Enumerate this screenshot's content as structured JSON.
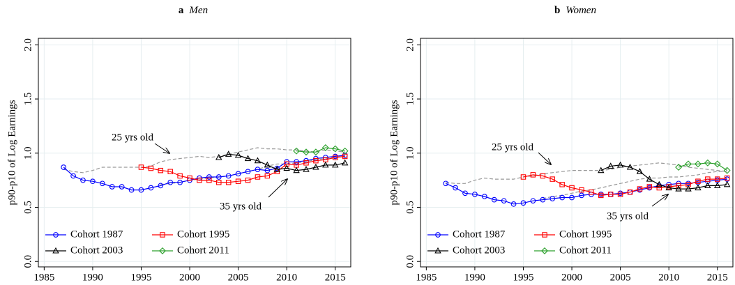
{
  "chart_data": [
    {
      "type": "line",
      "panel_label": "a",
      "title": "Men",
      "ylabel": "p90-p10 of Log Earnings",
      "x": [
        1987,
        1988,
        1989,
        1990,
        1991,
        1992,
        1993,
        1994,
        1995,
        1996,
        1997,
        1998,
        1999,
        2000,
        2001,
        2002,
        2003,
        2004,
        2005,
        2006,
        2007,
        2008,
        2009,
        2010,
        2011,
        2012,
        2013,
        2014,
        2015,
        2016
      ],
      "xlim": [
        1984.4,
        2016.6
      ],
      "xticks": [
        1985,
        1990,
        1995,
        2000,
        2005,
        2010,
        2015
      ],
      "ylim": [
        -0.05,
        2.06
      ],
      "yticks": [
        {
          "value": 0,
          "label": "0.0"
        },
        0.5,
        {
          "value": 1,
          "label": "1.0"
        },
        1.5,
        {
          "value": 2,
          "label": "2.0"
        }
      ],
      "grid": true,
      "series": [
        {
          "name": "Cohort 1987",
          "color": "#0000ff",
          "marker": "circle",
          "values": [
            0.87,
            0.79,
            0.75,
            0.74,
            0.72,
            0.69,
            0.69,
            0.66,
            0.66,
            0.68,
            0.7,
            0.73,
            0.73,
            0.75,
            0.77,
            0.78,
            0.78,
            0.79,
            0.81,
            0.83,
            0.85,
            0.84,
            0.86,
            0.92,
            0.92,
            0.93,
            0.95,
            0.96,
            0.97,
            0.98
          ]
        },
        {
          "name": "Cohort 1995",
          "color": "#ff0000",
          "marker": "square",
          "values": [
            null,
            null,
            null,
            null,
            null,
            null,
            null,
            null,
            0.87,
            0.86,
            0.84,
            0.83,
            0.79,
            0.77,
            0.75,
            0.75,
            0.73,
            0.73,
            0.74,
            0.75,
            0.78,
            0.79,
            0.83,
            0.9,
            0.89,
            0.91,
            0.93,
            0.94,
            0.96,
            0.97
          ]
        },
        {
          "name": "Cohort 2003",
          "color": "#000000",
          "marker": "triangle",
          "values": [
            null,
            null,
            null,
            null,
            null,
            null,
            null,
            null,
            null,
            null,
            null,
            null,
            null,
            null,
            null,
            null,
            0.96,
            0.99,
            0.98,
            0.95,
            0.93,
            0.89,
            0.85,
            0.86,
            0.84,
            0.85,
            0.87,
            0.89,
            0.89,
            0.91
          ]
        },
        {
          "name": "Cohort 2011",
          "color": "#2ca02c",
          "marker": "diamond",
          "values": [
            null,
            null,
            null,
            null,
            null,
            null,
            null,
            null,
            null,
            null,
            null,
            null,
            null,
            null,
            null,
            null,
            null,
            null,
            null,
            null,
            null,
            null,
            null,
            null,
            1.02,
            1.01,
            1.01,
            1.05,
            1.04,
            1.02
          ]
        }
      ],
      "reference_lines": [
        {
          "label": "25 yrs old",
          "color": "#999999",
          "values": [
            0.85,
            0.83,
            0.82,
            0.84,
            0.87,
            0.87,
            0.87,
            0.87,
            0.87,
            0.88,
            0.92,
            0.94,
            0.95,
            0.96,
            0.97,
            0.96,
            0.97,
            0.99,
            1.01,
            1.03,
            1.05,
            1.04,
            1.04,
            1.03,
            1.03,
            1.02,
            1.01,
            1.03,
            1.02,
            1.01
          ]
        },
        {
          "label": "35 yrs old",
          "color": "#999999",
          "values": [
            null,
            null,
            null,
            null,
            null,
            null,
            null,
            null,
            null,
            null,
            0.71,
            0.72,
            0.73,
            0.75,
            0.76,
            0.77,
            0.78,
            0.79,
            0.81,
            0.83,
            0.85,
            0.88,
            0.9,
            0.9,
            0.91,
            0.92,
            0.94,
            0.95,
            0.96,
            0.97
          ]
        }
      ]
    },
    {
      "type": "line",
      "panel_label": "b",
      "title": "Women",
      "ylabel": "p90-p10 of Log Earnings",
      "x": [
        1987,
        1988,
        1989,
        1990,
        1991,
        1992,
        1993,
        1994,
        1995,
        1996,
        1997,
        1998,
        1999,
        2000,
        2001,
        2002,
        2003,
        2004,
        2005,
        2006,
        2007,
        2008,
        2009,
        2010,
        2011,
        2012,
        2013,
        2014,
        2015,
        2016
      ],
      "xlim": [
        1984.4,
        2016.6
      ],
      "xticks": [
        1985,
        1990,
        1995,
        2000,
        2005,
        2010,
        2015
      ],
      "ylim": [
        -0.05,
        2.06
      ],
      "yticks": [
        {
          "value": 0,
          "label": "0.0"
        },
        0.5,
        {
          "value": 1,
          "label": "1.0"
        },
        1.5,
        {
          "value": 2,
          "label": "2.0"
        }
      ],
      "grid": true,
      "series": [
        {
          "name": "Cohort 1987",
          "color": "#0000ff",
          "marker": "circle",
          "values": [
            0.72,
            0.68,
            0.63,
            0.62,
            0.6,
            0.57,
            0.56,
            0.53,
            0.54,
            0.56,
            0.57,
            0.58,
            0.59,
            0.59,
            0.61,
            0.62,
            0.62,
            0.62,
            0.63,
            0.64,
            0.66,
            0.68,
            0.7,
            0.71,
            0.72,
            0.72,
            0.73,
            0.74,
            0.75,
            0.76
          ]
        },
        {
          "name": "Cohort 1995",
          "color": "#ff0000",
          "marker": "square",
          "values": [
            null,
            null,
            null,
            null,
            null,
            null,
            null,
            null,
            0.78,
            0.8,
            0.79,
            0.76,
            0.71,
            0.68,
            0.66,
            0.64,
            0.61,
            0.62,
            0.62,
            0.64,
            0.67,
            0.69,
            0.68,
            0.69,
            0.7,
            0.71,
            0.74,
            0.76,
            0.76,
            0.77
          ]
        },
        {
          "name": "Cohort 2003",
          "color": "#000000",
          "marker": "triangle",
          "values": [
            null,
            null,
            null,
            null,
            null,
            null,
            null,
            null,
            null,
            null,
            null,
            null,
            null,
            null,
            null,
            null,
            0.84,
            0.88,
            0.89,
            0.87,
            0.83,
            0.76,
            0.71,
            0.68,
            0.67,
            0.67,
            0.68,
            0.7,
            0.7,
            0.71
          ]
        },
        {
          "name": "Cohort 2011",
          "color": "#2ca02c",
          "marker": "diamond",
          "values": [
            null,
            null,
            null,
            null,
            null,
            null,
            null,
            null,
            null,
            null,
            null,
            null,
            null,
            null,
            null,
            null,
            null,
            null,
            null,
            null,
            null,
            null,
            null,
            null,
            0.87,
            0.9,
            0.9,
            0.91,
            0.9,
            0.84
          ]
        }
      ],
      "reference_lines": [
        {
          "label": "25 yrs old",
          "color": "#999999",
          "values": [
            0.73,
            0.72,
            0.72,
            0.75,
            0.77,
            0.76,
            0.76,
            0.76,
            0.78,
            0.79,
            0.81,
            0.82,
            0.83,
            0.84,
            0.84,
            0.84,
            0.84,
            0.85,
            0.87,
            0.88,
            0.89,
            0.9,
            0.91,
            0.9,
            0.89,
            0.87,
            0.86,
            0.85,
            0.84,
            0.83
          ]
        },
        {
          "label": "35 yrs old",
          "color": "#999999",
          "values": [
            null,
            null,
            null,
            null,
            null,
            null,
            null,
            null,
            null,
            null,
            0.58,
            0.6,
            0.61,
            0.63,
            0.65,
            0.66,
            0.68,
            0.7,
            0.72,
            0.74,
            0.76,
            0.77,
            0.77,
            0.78,
            0.78,
            0.79,
            0.8,
            0.82,
            0.83,
            0.83
          ]
        }
      ]
    }
  ]
}
